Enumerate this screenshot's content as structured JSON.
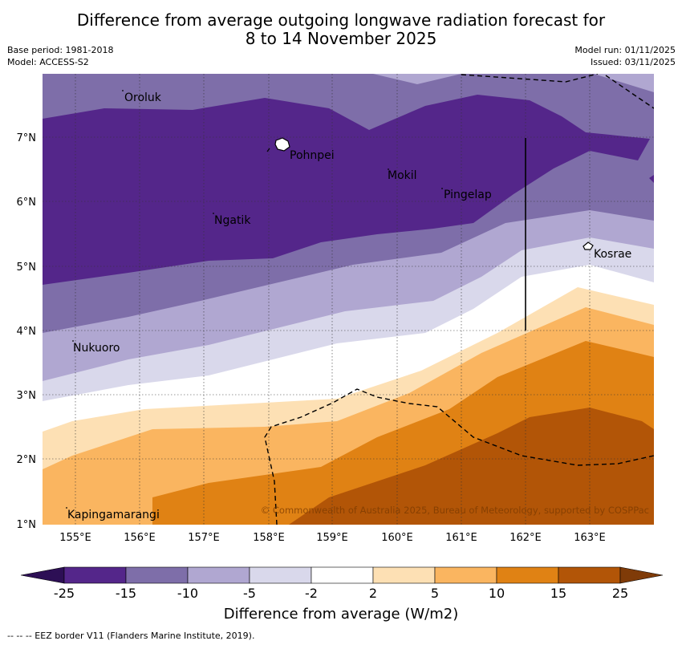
{
  "title_line1": "Difference from average outgoing longwave radiation forecast for",
  "title_line2": "8 to 14 November 2025",
  "base_period": "Base period: 1981-2018",
  "model": "Model: ACCESS-S2",
  "model_run": "Model run: 01/11/2025",
  "issued": "Issued: 03/11/2025",
  "copyright": "© Commonwealth of Australia 2025, Bureau of Meteorology, supported by COSPPac",
  "x_ticks": [
    "155°E",
    "156°E",
    "157°E",
    "158°E",
    "159°E",
    "160°E",
    "161°E",
    "162°E",
    "163°E"
  ],
  "y_ticks": [
    "7°N",
    "6°N",
    "5°N",
    "4°N",
    "3°N",
    "2°N",
    "1°N"
  ],
  "places": [
    "Oroluk",
    "Pohnpei",
    "Mokil",
    "Pingelap",
    "Ngatik",
    "Kosrae",
    "Nukuoro",
    "Kapingamarangi"
  ],
  "legend": {
    "ticks": [
      "-25",
      "-15",
      "-10",
      "-5",
      "-2",
      "2",
      "5",
      "10",
      "15",
      "25"
    ],
    "colors": [
      "#2d0f55",
      "#54268a",
      "#7e6ea9",
      "#b0a7d1",
      "#d9d8eb",
      "#ffffff",
      "#fde0b4",
      "#fab560",
      "#e08214",
      "#b25507",
      "#7f3b08"
    ],
    "caption": "Difference from average (W/m2)"
  },
  "eez_note": "--  --  -- EEZ border V11 (Flanders Marine Institute, 2019)."
}
